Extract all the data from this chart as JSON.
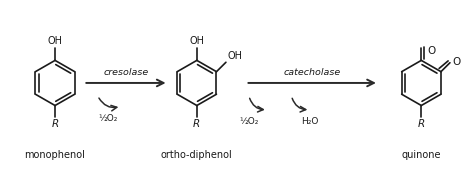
{
  "background_color": "#ffffff",
  "text_color": "#1a1a1a",
  "arrow_color": "#2a2a2a",
  "label1": "monophenol",
  "label2": "ortho-diphenol",
  "label3": "quinone",
  "enzyme1": "cresolase",
  "enzyme2": "catecholase",
  "reactant1": "½O₂",
  "reactant2a": "½O₂",
  "reactant2b": "H₂O",
  "oh_label": "OH",
  "r_label": "R",
  "o_label": "O",
  "figw": 4.74,
  "figh": 1.8,
  "dpi": 100
}
